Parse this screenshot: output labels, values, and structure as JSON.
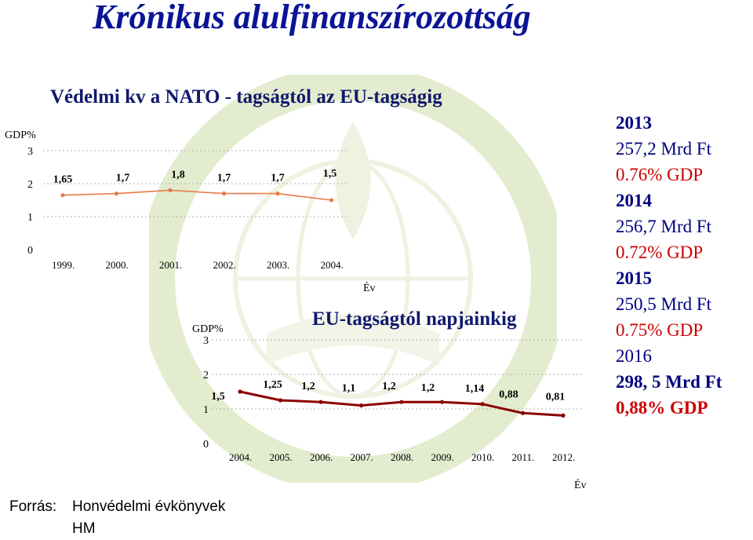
{
  "title": "Krónikus alulfinanszírozottság",
  "colors": {
    "title": "#0a1496",
    "line": "#e87a4a",
    "line2": "#8b0000",
    "accent": "#cc0000"
  },
  "chart_data": [
    {
      "type": "line",
      "title": "Védelmi kv a NATO - tagságtól az EU-tagságig",
      "ylabel": "GDP%",
      "xlabel": "Év",
      "ylim": [
        0,
        3
      ],
      "yticks": [
        "0",
        "1",
        "2",
        "3"
      ],
      "categories": [
        "1999.",
        "2000.",
        "2001.",
        "2002.",
        "2003.",
        "2004."
      ],
      "values": [
        1.65,
        1.7,
        1.8,
        1.7,
        1.7,
        1.5
      ],
      "data_labels": [
        "1,65",
        "1,7",
        "1,8",
        "1,7",
        "1,7",
        "1,5"
      ],
      "grid": true
    },
    {
      "type": "line",
      "title": "EU-tagságtól napjainkig",
      "ylabel": "GDP%",
      "xlabel": "Év",
      "ylim": [
        0,
        3
      ],
      "yticks": [
        "0",
        "1",
        "2",
        "3"
      ],
      "categories": [
        "2004.",
        "2005.",
        "2006.",
        "2007.",
        "2008.",
        "2009.",
        "2010.",
        "2011.",
        "2012."
      ],
      "values": [
        1.5,
        1.25,
        1.2,
        1.1,
        1.2,
        1.2,
        1.14,
        0.88,
        0.81
      ],
      "data_labels": [
        "1,5",
        "1,25",
        "1,2",
        "1,1",
        "1,2",
        "1,2",
        "1,14",
        "0,88",
        "0,81"
      ],
      "grid": true
    }
  ],
  "info": [
    {
      "year": "2013",
      "amount": "257,2 Mrd Ft",
      "pct": "0.76% GDP"
    },
    {
      "year": "2014",
      "amount": "256,7 Mrd Ft",
      "pct": "0.72% GDP"
    },
    {
      "year": "2015",
      "amount": "250,5 Mrd Ft",
      "pct": "0.75% GDP"
    },
    {
      "year": "2016",
      "amount": "298, 5 Mrd Ft",
      "pct": "0,88% GDP"
    }
  ],
  "source": {
    "label": "Forrás:",
    "line1": "Honvédelmi évkönyvek",
    "line2": "HM"
  }
}
